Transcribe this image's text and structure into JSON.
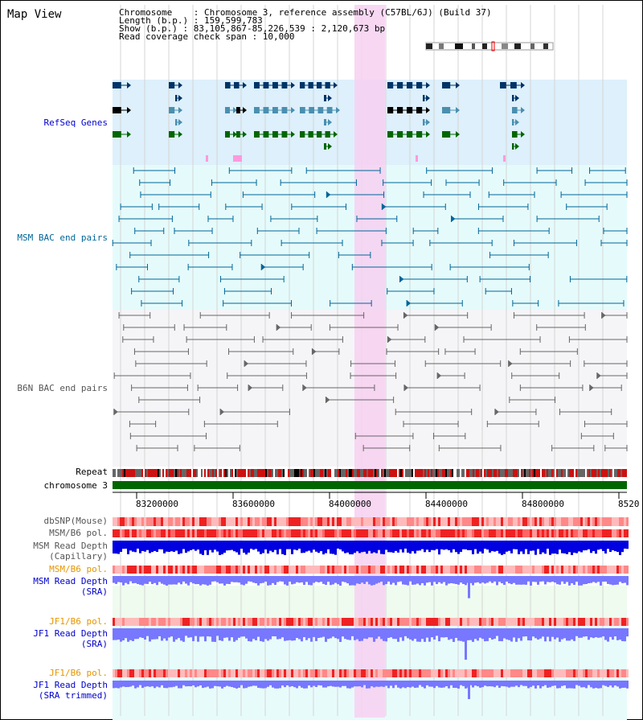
{
  "title": "Map View",
  "info": {
    "chromosome": "Chromosome    : Chromosome 3, reference assembly (C57BL/6J) (Build 37)",
    "length": "Length (b.p.) : 159,599,783",
    "show": "Show (b.p.) : 83,105,867-85,226,539 : 2,120,673 bp",
    "coverage": "Read coverage check span : 10,000"
  },
  "tracks": {
    "refseq": "RefSeq Genes",
    "msm_bac": "MSM BAC end pairs",
    "b6n_bac": "B6N BAC end pairs",
    "repeat": "Repeat",
    "chromosome": "chromosome 3",
    "dbsnp": "dbSNP(Mouse)",
    "msm_b6_pol": "MSM/B6 pol.",
    "msm_depth_cap_1": "MSM Read Depth",
    "msm_depth_cap_2": "(Capillary)",
    "msm_b6_pol_sra": "MSM/B6 pol.",
    "msm_depth_sra_1": "MSM Read Depth",
    "msm_depth_sra_2": "(SRA)",
    "jf1_b6_pol": "JF1/B6 pol.",
    "jf1_depth_sra_1": "JF1 Read Depth",
    "jf1_depth_sra_2": "(SRA)",
    "jf1_b6_pol_2": "JF1/B6 pol.",
    "jf1_depth_trim_1": "JF1 Read Depth",
    "jf1_depth_trim_2": "(SRA trimmed)"
  },
  "axis": {
    "ticks": [
      "83200000",
      "83600000",
      "84000000",
      "84400000",
      "84800000",
      "8520"
    ]
  },
  "colors": {
    "refseq_bg": "#ddf0fb",
    "msm_bg": "#e5fbfb",
    "b6n_bg": "#f5f5f8",
    "highlight": "#f7d0f1",
    "chromosome": "#006600",
    "dark_gene": "#003366",
    "teal_gene": "#4a8fb0",
    "green_gene": "#006600",
    "msm_feature": "#006699",
    "b6n_feature": "#666666",
    "msm_depth": "#0000e0",
    "sra_depth": "#7777ff",
    "pol_red": "#ee2222"
  }
}
